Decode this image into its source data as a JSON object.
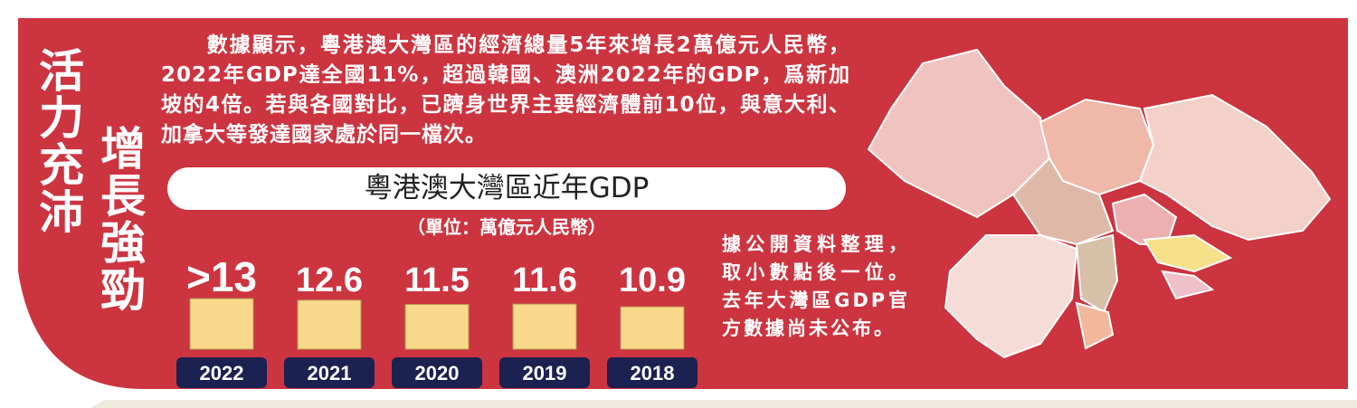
{
  "chart_data": {
    "type": "bar",
    "headline": [
      "活力充沛",
      "增長強勁"
    ],
    "text": "數據顯示，粵港澳大灣區的經濟總量5年來增長2萬億元人民幣，2022年GDP達全國11%，超過韓國、澳洲2022年的GDP，爲新加坡的4倍。若與各國對比，已躋身世界主要經濟體前10位，與意大利、加拿大等發達國家處於同一檔次。",
    "title": "粵港澳大灣區近年GDP",
    "subtitle": "（單位：萬億元人民幣）",
    "categories": [
      "2022",
      "2021",
      "2020",
      "2019",
      "2018"
    ],
    "values": [
      13,
      12.6,
      11.5,
      11.6,
      10.9
    ],
    "value_labels": [
      ">13",
      "12.6",
      "11.5",
      "11.6",
      "10.9"
    ],
    "color": "#f8d98c",
    "note": "據公開資料整理，取小數點後一位。去年大灣區GDP官方數據尚未公布。"
  }
}
